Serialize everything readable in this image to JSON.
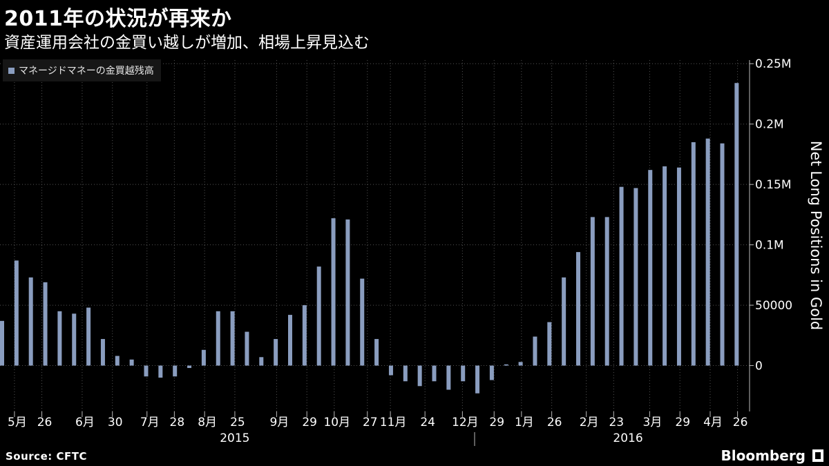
{
  "title": "2011年の状況が再来か",
  "subtitle": "資産運用会社の金買い越しが増加、相場上昇見込む",
  "source": "Source:  CFTC",
  "brand": "Bloomberg",
  "colors": {
    "bar": "#8a9dbf",
    "grid": "#555555",
    "axis": "#bbbbbb",
    "text": "#ffffff"
  },
  "chart_data": {
    "type": "bar",
    "title": "2011年の状況が再来か",
    "subtitle": "資産運用会社の金買い越しが増加、相場上昇見込む",
    "ylabel": "Net Long Positions in Gold",
    "ylim": [
      -38000,
      253000
    ],
    "yticks": [
      {
        "value": 250000,
        "label": "0.25M"
      },
      {
        "value": 200000,
        "label": "0.2M"
      },
      {
        "value": 150000,
        "label": "0.15M"
      },
      {
        "value": 100000,
        "label": "0.1M"
      },
      {
        "value": 50000,
        "label": "50000"
      },
      {
        "value": 0,
        "label": "0"
      }
    ],
    "series": [
      {
        "name": "マネージドマネーの金買越残高",
        "values": [
          37000,
          87000,
          73000,
          69000,
          45000,
          43000,
          48000,
          22000,
          8000,
          5000,
          -9000,
          -10000,
          -9000,
          -2000,
          13000,
          45000,
          45000,
          28000,
          7000,
          22000,
          42000,
          50000,
          82000,
          122000,
          121000,
          72000,
          22000,
          -8000,
          -13000,
          -17000,
          -13000,
          -20000,
          -13000,
          -23000,
          -12000,
          1000,
          3000,
          24000,
          36000,
          73000,
          94000,
          123000,
          123000,
          148000,
          147000,
          162000,
          165000,
          164000,
          185000,
          188000,
          184000,
          234000
        ]
      }
    ],
    "xlabels": [
      {
        "text": "5月",
        "bar": 1.1
      },
      {
        "text": "26",
        "bar": 3
      },
      {
        "text": "6月",
        "bar": 5.8
      },
      {
        "text": "30",
        "bar": 7.9
      },
      {
        "text": "7月",
        "bar": 10.3
      },
      {
        "text": "28",
        "bar": 12.2
      },
      {
        "text": "8月",
        "bar": 14.3
      },
      {
        "text": "25",
        "bar": 16.4
      },
      {
        "text": "9月",
        "bar": 19.3
      },
      {
        "text": "29",
        "bar": 21.4
      },
      {
        "text": "10月",
        "bar": 23.3
      },
      {
        "text": "27",
        "bar": 25.6
      },
      {
        "text": "11月",
        "bar": 27.2
      },
      {
        "text": "24",
        "bar": 29.6
      },
      {
        "text": "12月",
        "bar": 32.2
      },
      {
        "text": "29",
        "bar": 34.4
      },
      {
        "text": "1月",
        "bar": 36.3
      },
      {
        "text": "26",
        "bar": 38.4
      },
      {
        "text": "2月",
        "bar": 40.8
      },
      {
        "text": "23",
        "bar": 42.7
      },
      {
        "text": "3月",
        "bar": 45.2
      },
      {
        "text": "29",
        "bar": 47.3
      },
      {
        "text": "4月",
        "bar": 49.4
      },
      {
        "text": "26",
        "bar": 51.3
      }
    ],
    "years": [
      {
        "text": "2015",
        "bar": 16.3
      },
      {
        "text": "2016",
        "bar": 43.6
      }
    ],
    "grid": true,
    "legend_position": "top-left"
  }
}
